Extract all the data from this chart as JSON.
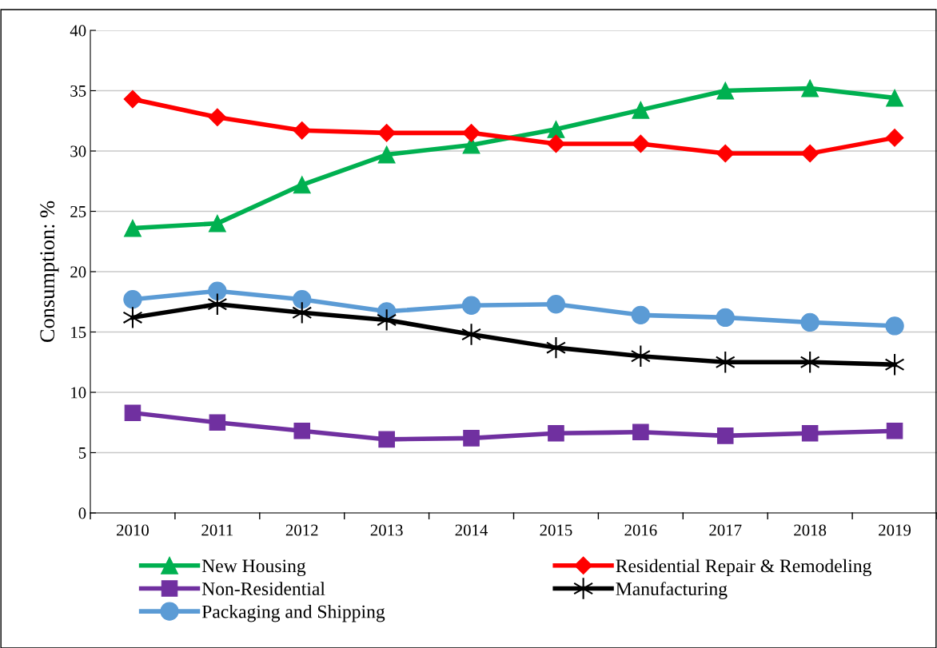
{
  "chart_data": {
    "type": "line",
    "ylabel": "Consumption: %",
    "categories": [
      "2010",
      "2011",
      "2012",
      "2013",
      "2014",
      "2015",
      "2016",
      "2017",
      "2018",
      "2019"
    ],
    "series": [
      {
        "name": "New Housing",
        "color": "#00b050",
        "marker": "triangle",
        "values": [
          23.6,
          24.0,
          27.2,
          29.7,
          30.5,
          31.8,
          33.4,
          35.0,
          35.2,
          34.4
        ]
      },
      {
        "name": "Residential Repair & Remodeling",
        "color": "#ff0000",
        "marker": "diamond",
        "values": [
          34.3,
          32.8,
          31.7,
          31.5,
          31.5,
          30.6,
          30.6,
          29.8,
          29.8,
          31.1
        ]
      },
      {
        "name": "Non-Residential",
        "color": "#7030a0",
        "marker": "square",
        "values": [
          8.3,
          7.5,
          6.8,
          6.1,
          6.2,
          6.6,
          6.7,
          6.4,
          6.6,
          6.8
        ]
      },
      {
        "name": "Manufacturing",
        "color": "#000000",
        "marker": "cross",
        "values": [
          16.2,
          17.3,
          16.6,
          16.0,
          14.8,
          13.7,
          13.0,
          12.5,
          12.5,
          12.3
        ]
      },
      {
        "name": "Packaging and Shipping",
        "color": "#5b9bd5",
        "marker": "circle",
        "values": [
          17.7,
          18.4,
          17.7,
          16.7,
          17.2,
          17.3,
          16.4,
          16.2,
          15.8,
          15.5
        ]
      }
    ],
    "ylim": [
      0,
      40
    ],
    "yticks": [
      0,
      5,
      10,
      15,
      20,
      25,
      30,
      35,
      40
    ],
    "grid": "y",
    "legend": "bottom",
    "line_style": "solid"
  }
}
